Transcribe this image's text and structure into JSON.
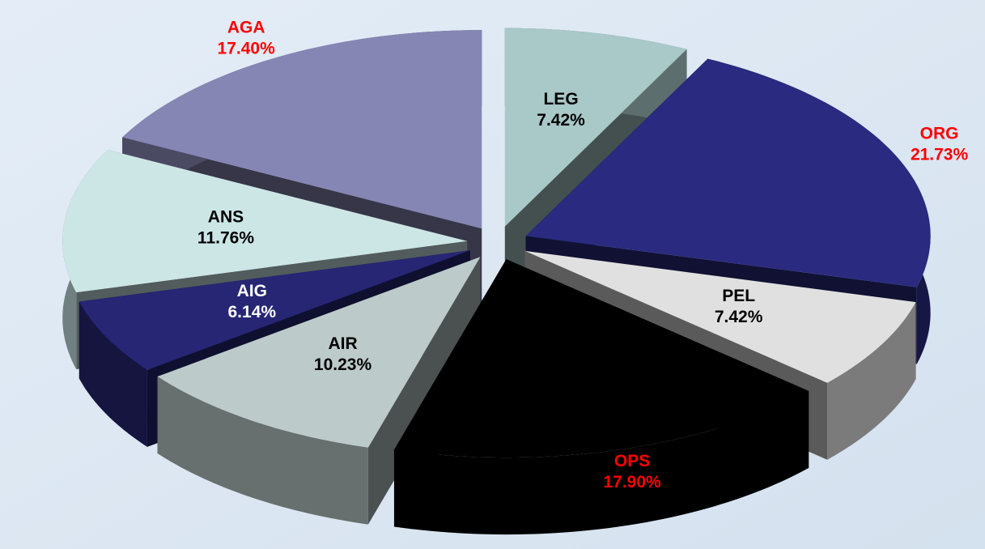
{
  "chart_data": {
    "type": "pie",
    "categories": [
      "LEG",
      "ORG",
      "PEL",
      "OPS",
      "AIR",
      "AIG",
      "ANS",
      "AGA"
    ],
    "values": [
      7.42,
      21.73,
      7.42,
      17.9,
      10.23,
      6.14,
      11.76,
      17.4
    ],
    "value_labels": [
      "7.42%",
      "21.73%",
      "7.42%",
      "17.90%",
      "10.23%",
      "6.14%",
      "11.76%",
      "17.40%"
    ],
    "colors": [
      "#a9c8c8",
      "#2a2a80",
      "#e0e0e0",
      "#000000",
      "#bccaca",
      "#262675",
      "#cce6e6",
      "#8686b4"
    ],
    "label_colors": [
      "#000000",
      "#ff0000",
      "#000000",
      "#ff0000",
      "#000000",
      "#ffffff",
      "#000000",
      "#ff0000"
    ],
    "start_angle": 0,
    "direction": "clockwise",
    "exploded": true,
    "three_d": true
  }
}
